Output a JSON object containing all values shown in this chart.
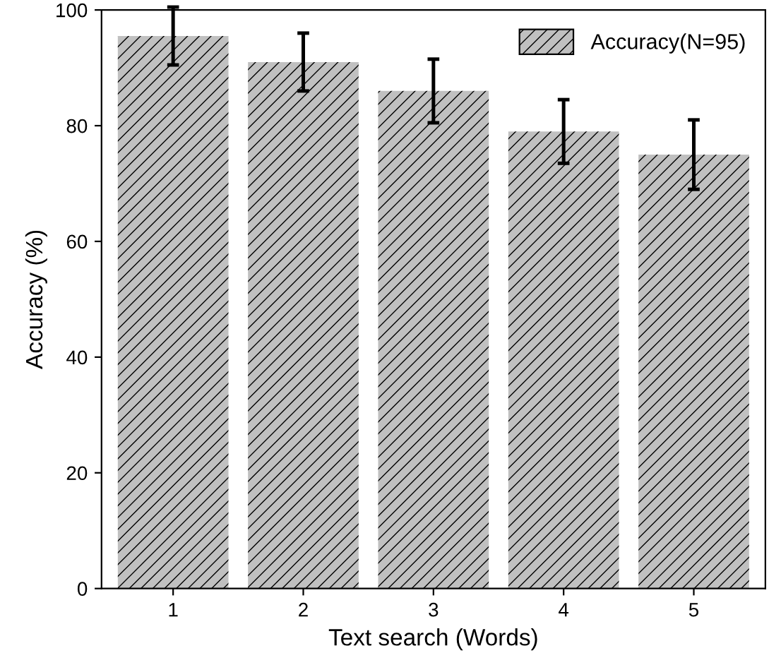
{
  "chart_data": {
    "type": "bar",
    "xlabel": "Text search (Words)",
    "ylabel": "Accuracy (%)",
    "categories": [
      "1",
      "2",
      "3",
      "4",
      "5"
    ],
    "series": [
      {
        "name": "Accuracy(N=95)",
        "color": "#c0c0c0",
        "values": [
          95.5,
          91,
          86,
          79,
          75
        ],
        "errors": [
          5,
          5,
          5.5,
          5.5,
          6
        ]
      }
    ],
    "ylim": [
      0,
      100
    ],
    "yticks": [
      0,
      20,
      40,
      60,
      80,
      100
    ],
    "grid": false,
    "legend": "top right"
  }
}
